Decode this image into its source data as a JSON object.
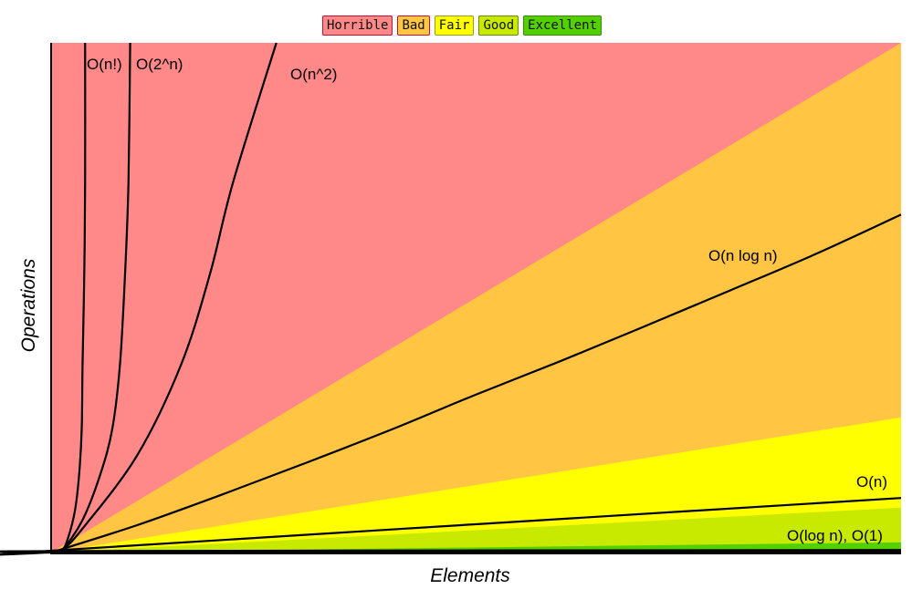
{
  "chart_data": {
    "type": "line",
    "title": "",
    "xlabel": "Elements",
    "ylabel": "Operations",
    "xlim": [
      0,
      100
    ],
    "ylim": [
      0,
      100
    ],
    "grid": false,
    "legend_placement": "top-center",
    "legend": [
      {
        "label": "Horrible",
        "color": "#ff8888",
        "border": "#c8102e"
      },
      {
        "label": "Bad",
        "color": "#ffc543",
        "border": "#c8102e"
      },
      {
        "label": "Fair",
        "color": "#ffff00",
        "border": "#9a9a20"
      },
      {
        "label": "Good",
        "color": "#c8ea00",
        "border": "#6a8a00"
      },
      {
        "label": "Excellent",
        "color": "#53d000",
        "border": "#3a8a00"
      }
    ],
    "regions": [
      {
        "name": "Horrible",
        "color": "#ff8888",
        "upper_at_xmax": 100,
        "fills_to_top": true
      },
      {
        "name": "Bad",
        "color": "#ffc543",
        "upper_at_xmax": 100
      },
      {
        "name": "Fair",
        "color": "#ffff00",
        "upper_at_xmax": 26.5
      },
      {
        "name": "Good",
        "color": "#c8ea00",
        "upper_at_xmax": 8.8
      },
      {
        "name": "Excellent",
        "color": "#53d000",
        "upper_at_xmax": 2
      }
    ],
    "series": [
      {
        "name": "O(n!)",
        "points": [
          [
            0,
            0
          ],
          [
            1.3,
            0.5
          ],
          [
            2.0,
            2.9
          ],
          [
            2.8,
            8.2
          ],
          [
            3.3,
            15.4
          ],
          [
            3.6,
            24.3
          ],
          [
            3.7,
            37
          ],
          [
            3.9,
            54.7
          ],
          [
            4.0,
            72.6
          ],
          [
            4.0,
            100
          ]
        ]
      },
      {
        "name": "O(2^n)",
        "points": [
          [
            0,
            0
          ],
          [
            1.3,
            0.5
          ],
          [
            3.7,
            6.4
          ],
          [
            5.8,
            15.4
          ],
          [
            7.2,
            24.3
          ],
          [
            8.1,
            36.9
          ],
          [
            8.7,
            54.7
          ],
          [
            9.1,
            72.6
          ],
          [
            9.3,
            100
          ]
        ]
      },
      {
        "name": "O(n^2)",
        "points": [
          [
            0,
            0
          ],
          [
            1.3,
            0.5
          ],
          [
            3.7,
            4.7
          ],
          [
            10.1,
            19
          ],
          [
            15.3,
            36.9
          ],
          [
            18.7,
            54.7
          ],
          [
            21.4,
            72.6
          ],
          [
            26.5,
            100
          ]
        ]
      },
      {
        "name": "O(n log n)",
        "points": [
          [
            0,
            0
          ],
          [
            10,
            5.3
          ],
          [
            20,
            11.3
          ],
          [
            30,
            17.6
          ],
          [
            40,
            24.1
          ],
          [
            50,
            31.0
          ],
          [
            60,
            37.6
          ],
          [
            70,
            44.5
          ],
          [
            80,
            51.5
          ],
          [
            90,
            58.6
          ],
          [
            100,
            66.3
          ]
        ]
      },
      {
        "name": "O(n)",
        "points": [
          [
            0,
            0
          ],
          [
            1.3,
            0.5
          ],
          [
            100,
            10.7
          ]
        ]
      },
      {
        "name": "O(log n), O(1)",
        "points": [
          [
            0,
            0
          ],
          [
            1.3,
            0.3
          ],
          [
            100,
            0.5
          ]
        ]
      }
    ]
  }
}
